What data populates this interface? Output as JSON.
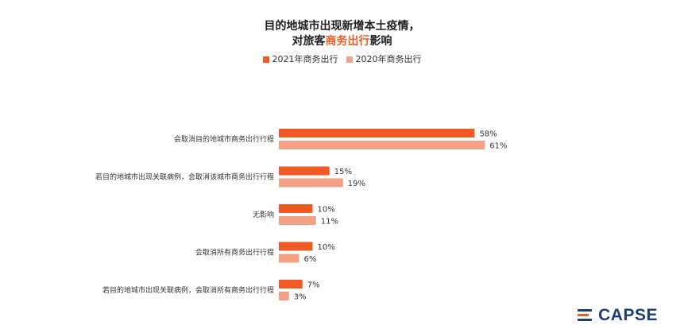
{
  "title": {
    "line1": "目的地城市出现新增本土疫情，",
    "line2_plain": "对旅客",
    "line2_accent": "商务出行",
    "line2_tail": "影响"
  },
  "colors": {
    "series_2021": "#f15a22",
    "series_2020": "#f4a084",
    "title_accent": "#f15a22",
    "logo_blue": "#1f3c7a",
    "logo_orange": "#f15a22"
  },
  "logo": {
    "icon": "capse-logo-icon",
    "text": "CAPSE"
  },
  "chart_data": {
    "type": "bar",
    "orientation": "horizontal",
    "categories": [
      "会取消目的地城市商务出行行程",
      "若目的地城市出现关联病例，会取消该城市商务出行行程",
      "无影响",
      "会取消所有商务出行行程",
      "若目的地城市出现关联病例，会取消所有商务出行行程"
    ],
    "series": [
      {
        "name": "2021年商务出行",
        "values": [
          58,
          15,
          10,
          10,
          7
        ],
        "labels": [
          "58%",
          "15%",
          "10%",
          "10%",
          "7%"
        ]
      },
      {
        "name": "2020年商务出行",
        "values": [
          61,
          19,
          11,
          6,
          3
        ],
        "labels": [
          "61%",
          "19%",
          "11%",
          "6%",
          "3%"
        ]
      }
    ],
    "xlim": [
      0,
      100
    ],
    "grid": false,
    "legend": "top-center"
  }
}
